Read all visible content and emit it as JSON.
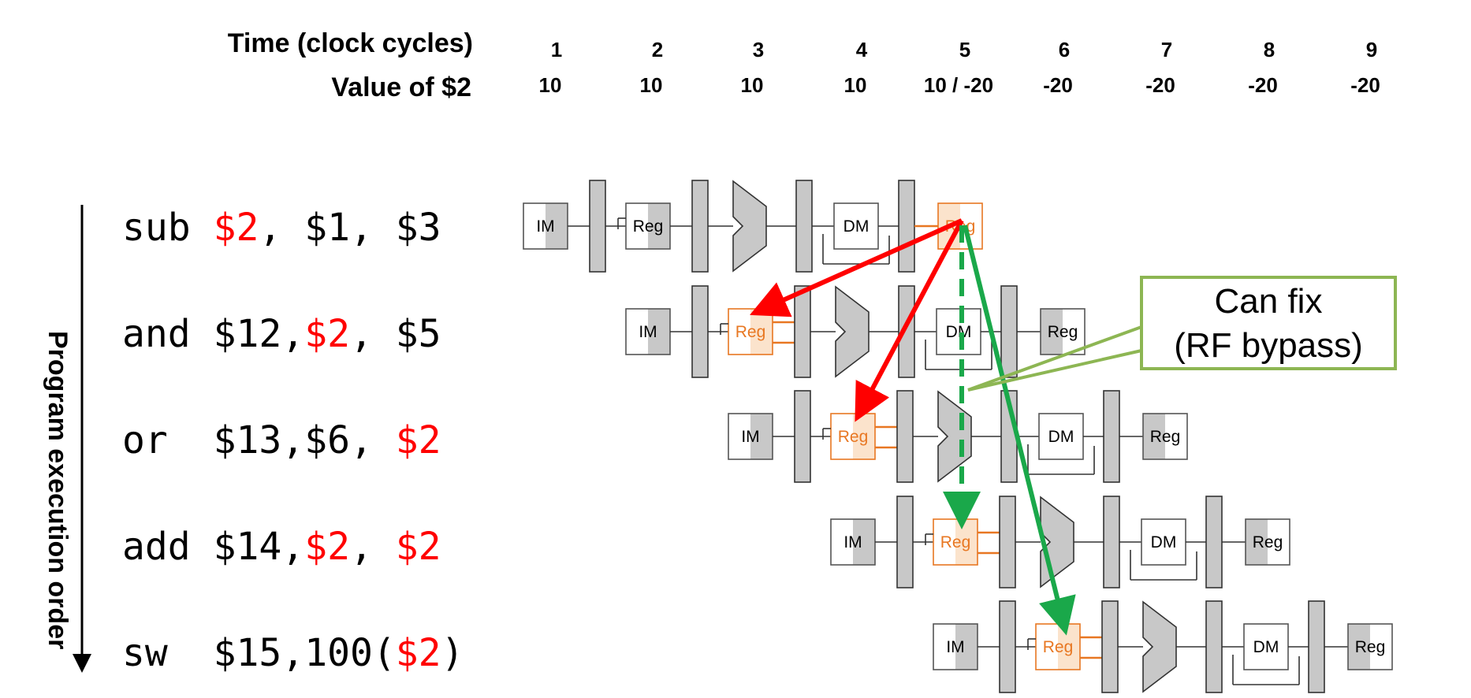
{
  "header": {
    "time_label": "Time (clock cycles)",
    "value_label": "Value of $2",
    "cycles": [
      "1",
      "2",
      "3",
      "4",
      "5",
      "6",
      "7",
      "8",
      "9"
    ],
    "values": [
      "10",
      "10",
      "10",
      "10",
      "10 / -20",
      "-20",
      "-20",
      "-20",
      "-20"
    ]
  },
  "axis": {
    "label": "Program execution order"
  },
  "instructions": [
    {
      "parts": [
        {
          "text": "sub ",
          "hl": false
        },
        {
          "text": "$2",
          "hl": true
        },
        {
          "text": ", $1, $3",
          "hl": false
        }
      ]
    },
    {
      "parts": [
        {
          "text": "and $12,",
          "hl": false
        },
        {
          "text": "$2",
          "hl": true
        },
        {
          "text": ", $5",
          "hl": false
        }
      ]
    },
    {
      "parts": [
        {
          "text": "or  $13,$6, ",
          "hl": false
        },
        {
          "text": "$2",
          "hl": true
        }
      ]
    },
    {
      "parts": [
        {
          "text": "add $14,",
          "hl": false
        },
        {
          "text": "$2",
          "hl": true
        },
        {
          "text": ", ",
          "hl": false
        },
        {
          "text": "$2",
          "hl": true
        }
      ]
    },
    {
      "parts": [
        {
          "text": "sw  $15,100(",
          "hl": false
        },
        {
          "text": "$2",
          "hl": true
        },
        {
          "text": ")",
          "hl": false
        }
      ]
    }
  ],
  "stage_labels": {
    "im": "IM",
    "reg": "Reg",
    "dm": "DM"
  },
  "callout": {
    "line1": "Can fix",
    "line2": "(RF bypass)"
  },
  "colors": {
    "highlight": "#ff0000",
    "hazard_reg": "#e87722",
    "hazard_fill": "#fbe3cc",
    "bypass": "#1aa84a",
    "callout_border": "#8db653",
    "stage_gray": "#c8c8c8"
  }
}
